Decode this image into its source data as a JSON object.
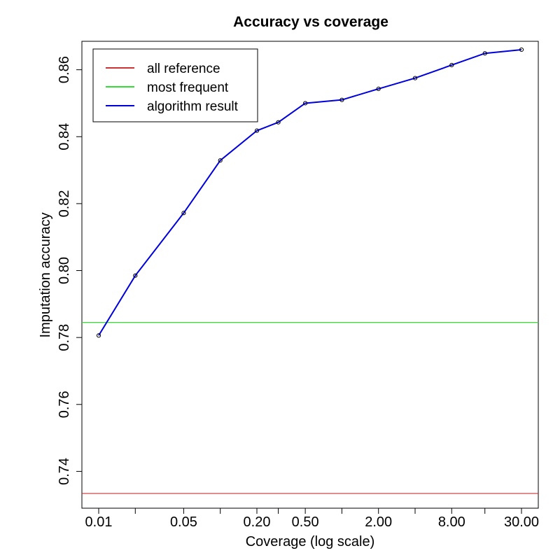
{
  "chart_data": {
    "type": "line",
    "title": "Accuracy vs coverage",
    "xlabel": "Coverage (log scale)",
    "ylabel": "Imputation accuracy",
    "x_scale": "log",
    "xlim": [
      0.01,
      30
    ],
    "ylim": [
      0.729,
      0.8685
    ],
    "x_ticks": [
      0.01,
      0.02,
      0.05,
      0.1,
      0.2,
      0.3,
      0.5,
      1,
      2,
      4,
      8,
      15,
      30
    ],
    "x_tick_labels": [
      "0.01",
      "0.05",
      "0.20",
      "0.50",
      "2.00",
      "8.00",
      "30.00"
    ],
    "x_tick_label_values": [
      0.01,
      0.05,
      0.2,
      0.5,
      2,
      8,
      30
    ],
    "y_ticks": [
      0.74,
      0.76,
      0.78,
      0.8,
      0.82,
      0.84,
      0.86
    ],
    "y_tick_labels": [
      "0.74",
      "0.76",
      "0.78",
      "0.80",
      "0.82",
      "0.84",
      "0.86"
    ],
    "grid": false,
    "legend_position": "top-left",
    "series": [
      {
        "name": "all reference",
        "color": "#cc3333",
        "kind": "hline",
        "y": 0.7334
      },
      {
        "name": "most frequent",
        "color": "#33dd33",
        "kind": "hline",
        "y": 0.7845
      },
      {
        "name": "algorithm result",
        "color": "#0000dd",
        "kind": "line-points",
        "x": [
          0.01,
          0.02,
          0.05,
          0.1,
          0.2,
          0.3,
          0.5,
          1,
          2,
          4,
          8,
          15,
          30
        ],
        "y": [
          0.7806,
          0.7985,
          0.8172,
          0.8329,
          0.8418,
          0.8443,
          0.85,
          0.851,
          0.8543,
          0.8575,
          0.8614,
          0.8649,
          0.866
        ]
      }
    ]
  }
}
